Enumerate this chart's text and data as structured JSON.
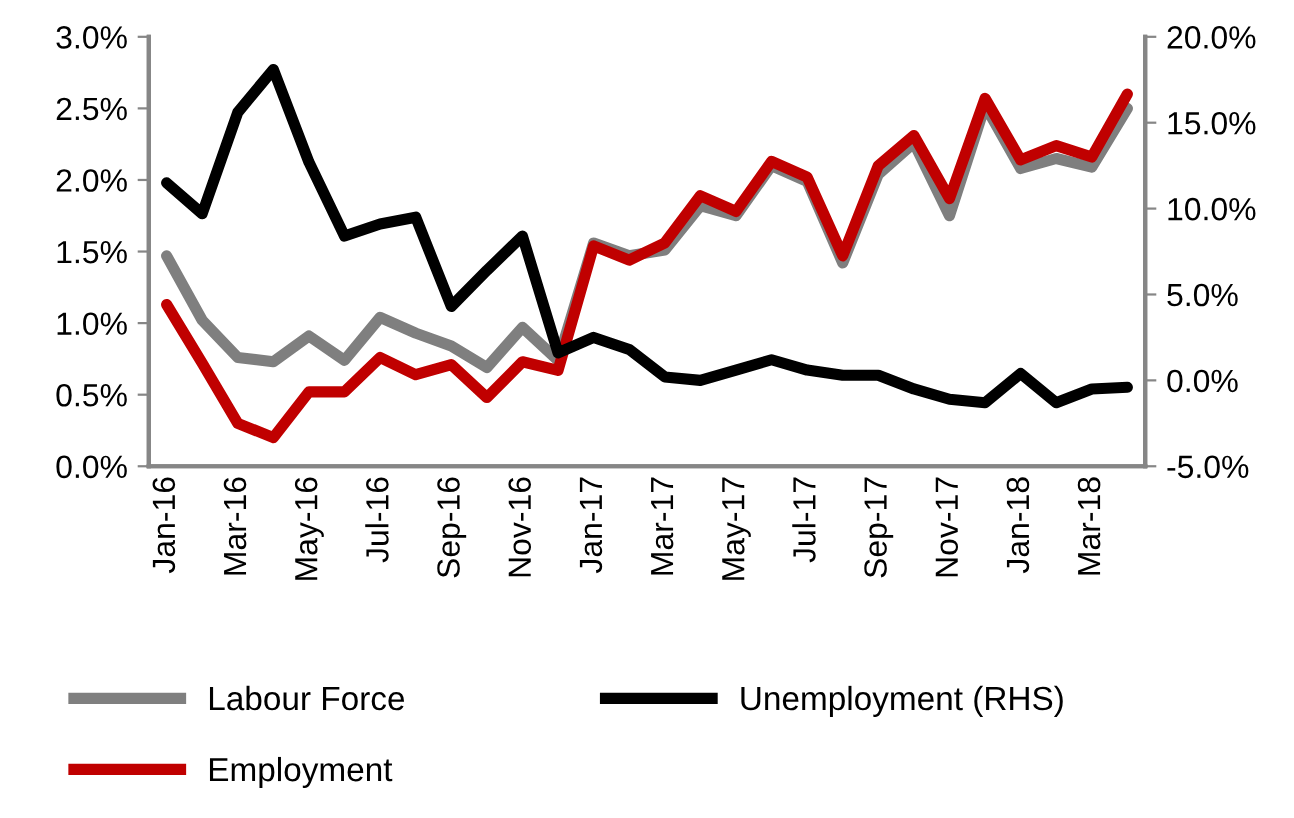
{
  "chart_data": {
    "type": "line",
    "categories": [
      "Jan-16",
      null,
      "Mar-16",
      null,
      "May-16",
      null,
      "Jul-16",
      null,
      "Sep-16",
      null,
      "Nov-16",
      null,
      "Jan-17",
      null,
      "Mar-17",
      null,
      "May-17",
      null,
      "Jul-17",
      null,
      "Sep-17",
      null,
      "Nov-17",
      null,
      "Jan-18",
      null,
      "Mar-18",
      null
    ],
    "series": [
      {
        "name": "Labour Force",
        "color": "#7f7f7f",
        "values": [
          1.47,
          1.02,
          0.76,
          0.73,
          0.91,
          0.74,
          1.04,
          0.93,
          0.84,
          0.69,
          0.97,
          0.74,
          1.56,
          1.47,
          1.51,
          1.82,
          1.75,
          2.1,
          1.99,
          1.42,
          2.04,
          2.26,
          1.75,
          2.52,
          2.08,
          2.15,
          2.09,
          2.5
        ]
      },
      {
        "name": "Employment",
        "color": "#c00000",
        "values": [
          1.13,
          0.72,
          0.3,
          0.2,
          0.52,
          0.52,
          0.76,
          0.64,
          0.71,
          0.48,
          0.73,
          0.67,
          1.54,
          1.44,
          1.56,
          1.89,
          1.78,
          2.13,
          2.02,
          1.47,
          2.1,
          2.31,
          1.87,
          2.57,
          2.14,
          2.24,
          2.16,
          2.6
        ]
      },
      {
        "name": "Unemployment (RHS)",
        "color": "#000000",
        "axis": "y2",
        "values": [
          11.5,
          9.7,
          15.6,
          18.1,
          12.7,
          8.4,
          9.1,
          9.5,
          4.3,
          6.4,
          8.4,
          1.6,
          2.5,
          1.8,
          0.2,
          0.0,
          0.6,
          1.2,
          0.6,
          0.3,
          0.3,
          -0.5,
          -1.1,
          -1.3,
          0.4,
          -1.3,
          -0.5,
          -0.4
        ]
      }
    ],
    "ylim": [
      0,
      3.0
    ],
    "yticks": [
      {
        "value": 0,
        "label": "0.0%"
      },
      {
        "value": 0.5,
        "label": "0.5%"
      },
      {
        "value": 1.0,
        "label": "1.0%"
      },
      {
        "value": 1.5,
        "label": "1.5%"
      },
      {
        "value": 2.0,
        "label": "2.0%"
      },
      {
        "value": 2.5,
        "label": "2.5%"
      },
      {
        "value": 3.0,
        "label": "3.0%"
      }
    ],
    "y2lim": [
      -5,
      20
    ],
    "y2ticks": [
      {
        "value": -5,
        "label": "-5.0%"
      },
      {
        "value": 0,
        "label": "0.0%"
      },
      {
        "value": 5,
        "label": "5.0%"
      },
      {
        "value": 10,
        "label": "10.0%"
      },
      {
        "value": 15,
        "label": "15.0%"
      },
      {
        "value": 20,
        "label": "20.0%"
      }
    ],
    "grid": false,
    "legend": "bottom",
    "marker": "none",
    "line_style": "solid"
  }
}
